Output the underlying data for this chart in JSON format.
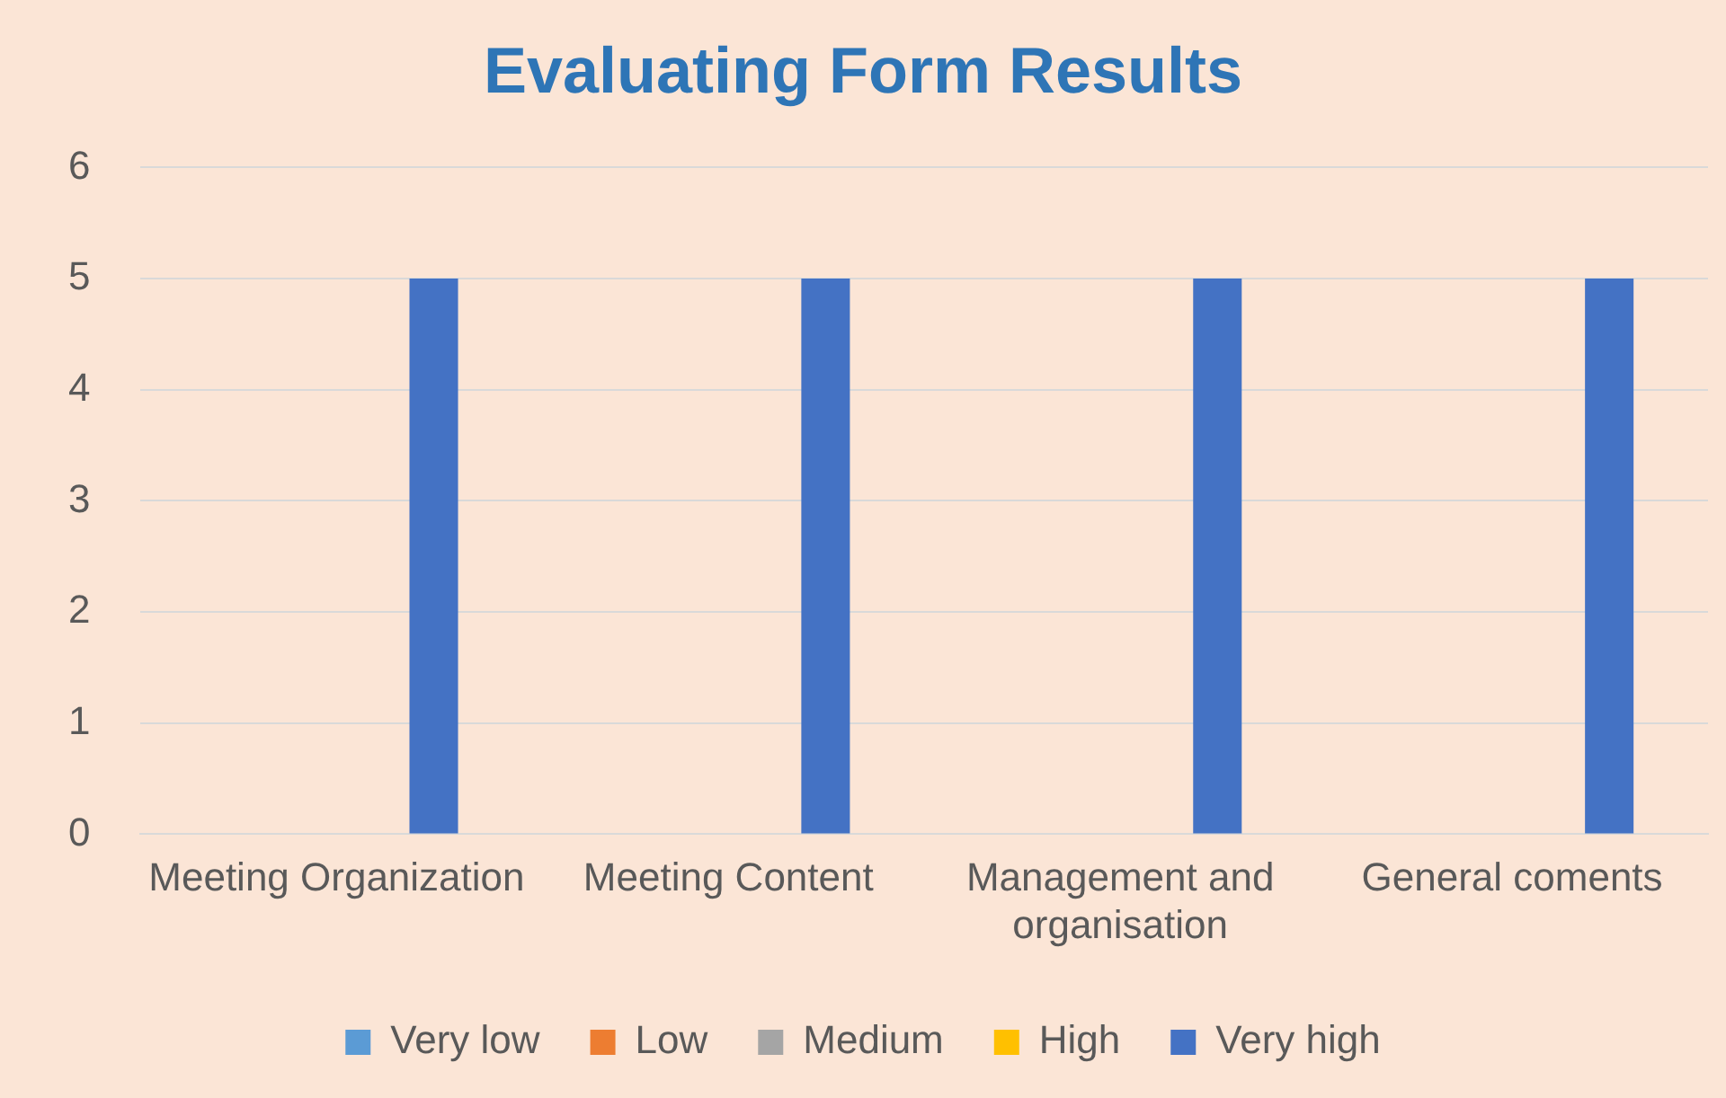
{
  "chart_data": {
    "type": "bar",
    "title": "Evaluating Form Results",
    "categories": [
      "Meeting Organization",
      "Meeting Content",
      "Management and organisation",
      "General coments"
    ],
    "series": [
      {
        "name": "Very low",
        "color": "#5b9bd5",
        "values": [
          0,
          0,
          0,
          0
        ]
      },
      {
        "name": "Low",
        "color": "#ed7d31",
        "values": [
          0,
          0,
          0,
          0
        ]
      },
      {
        "name": "Medium",
        "color": "#a5a5a5",
        "values": [
          0,
          0,
          0,
          0
        ]
      },
      {
        "name": "High",
        "color": "#ffc000",
        "values": [
          0,
          0,
          0,
          0
        ]
      },
      {
        "name": "Very high",
        "color": "#4472c4",
        "values": [
          5,
          5,
          5,
          5
        ]
      }
    ],
    "ylim": [
      0,
      6
    ],
    "yticks": [
      0,
      1,
      2,
      3,
      4,
      5,
      6
    ],
    "grid": "y",
    "legend": "bottom"
  }
}
